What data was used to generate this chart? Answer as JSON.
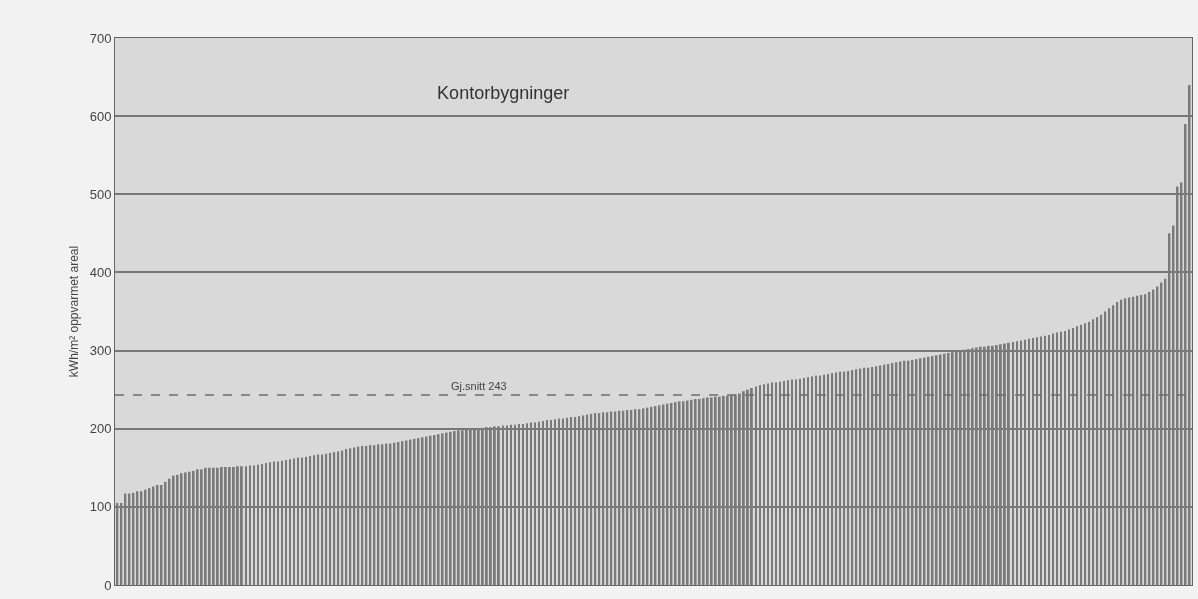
{
  "chart_data": {
    "type": "bar",
    "title": "Kontorbygninger",
    "ylabel": "kWh/m² oppvarmet areal",
    "categories": [
      null,
      null,
      null,
      null,
      null,
      null,
      null,
      null,
      null,
      null,
      null,
      null,
      null,
      null,
      null,
      null,
      null,
      null,
      null,
      null,
      null,
      null,
      null,
      null,
      null,
      null,
      null,
      null,
      null,
      null,
      null,
      null,
      null,
      null,
      null,
      null,
      null,
      null,
      null,
      null,
      null,
      null,
      null,
      null,
      null,
      null,
      null,
      null,
      null,
      null,
      null,
      null,
      null,
      null,
      null,
      null,
      null,
      null,
      null,
      null,
      null,
      null,
      null,
      null,
      null,
      null,
      null,
      null,
      null,
      null,
      null,
      null,
      null,
      null,
      null,
      null,
      null,
      null,
      null,
      null,
      null,
      null,
      null,
      null,
      null,
      null,
      null,
      null,
      null,
      null,
      null,
      null,
      null,
      null,
      null,
      null,
      null,
      null,
      null,
      null,
      null,
      null,
      null,
      null,
      null,
      null,
      null,
      null,
      null,
      null,
      null,
      null,
      null,
      null,
      null,
      null,
      null,
      null,
      null,
      null,
      null,
      null,
      null,
      null,
      null,
      null,
      null,
      null,
      null,
      null,
      null,
      null,
      null,
      null,
      null,
      null,
      null,
      null,
      null,
      null,
      null,
      null,
      null,
      null,
      null,
      null,
      null,
      null,
      null,
      null,
      null,
      null,
      null,
      null,
      null,
      null,
      null,
      null,
      null,
      null,
      null,
      null,
      null,
      null,
      null,
      null,
      null,
      null,
      null,
      null,
      null,
      null,
      null,
      null,
      null,
      null,
      null,
      null,
      null,
      null,
      null,
      null,
      null,
      null,
      null,
      null,
      null,
      null,
      null,
      null,
      null,
      null,
      null,
      null,
      null,
      null,
      null,
      null,
      null,
      null,
      null,
      null,
      null,
      null,
      null,
      null,
      null,
      null,
      null,
      null,
      null,
      null,
      null,
      null,
      null,
      null,
      null,
      null,
      null,
      null,
      null,
      null,
      null,
      null,
      null,
      null,
      null,
      null,
      null,
      null,
      null,
      null,
      null,
      null,
      null,
      null,
      null,
      null,
      null,
      null,
      null,
      null,
      null,
      null,
      null,
      null,
      null,
      null,
      null,
      null,
      null,
      null,
      null,
      null,
      null,
      null,
      null,
      null,
      null,
      null,
      null,
      null,
      null,
      null,
      null,
      null,
      null,
      null
    ],
    "values": [
      105,
      105,
      117,
      117,
      118,
      120,
      120,
      122,
      124,
      126,
      128,
      128,
      132,
      136,
      140,
      141,
      143,
      144,
      145,
      146,
      148,
      148,
      150,
      150,
      150,
      150,
      151,
      151,
      151,
      151,
      152,
      152,
      152,
      153,
      153,
      154,
      155,
      156,
      157,
      158,
      158,
      159,
      160,
      161,
      162,
      163,
      163,
      164,
      165,
      166,
      167,
      167,
      168,
      169,
      170,
      171,
      172,
      174,
      175,
      176,
      177,
      178,
      178,
      179,
      179,
      180,
      180,
      181,
      181,
      182,
      183,
      184,
      185,
      186,
      187,
      188,
      189,
      190,
      191,
      192,
      193,
      194,
      195,
      196,
      197,
      198,
      198,
      199,
      200,
      200,
      201,
      201,
      202,
      202,
      203,
      203,
      204,
      204,
      205,
      205,
      206,
      206,
      207,
      208,
      208,
      209,
      210,
      211,
      211,
      212,
      213,
      213,
      214,
      215,
      215,
      216,
      217,
      218,
      219,
      220,
      220,
      221,
      221,
      222,
      222,
      223,
      223,
      224,
      224,
      225,
      225,
      226,
      227,
      228,
      229,
      230,
      231,
      232,
      233,
      234,
      235,
      235,
      236,
      237,
      238,
      238,
      239,
      240,
      240,
      241,
      241,
      242,
      242,
      243,
      244,
      245,
      248,
      250,
      252,
      254,
      256,
      257,
      258,
      259,
      259,
      260,
      261,
      262,
      263,
      263,
      264,
      265,
      266,
      267,
      268,
      268,
      269,
      270,
      271,
      272,
      273,
      273,
      274,
      275,
      276,
      277,
      278,
      278,
      279,
      280,
      281,
      282,
      283,
      284,
      285,
      286,
      287,
      287,
      288,
      289,
      290,
      291,
      292,
      293,
      294,
      295,
      296,
      297,
      298,
      299,
      300,
      301,
      302,
      303,
      304,
      305,
      305,
      306,
      306,
      307,
      308,
      309,
      310,
      311,
      312,
      313,
      314,
      315,
      316,
      317,
      318,
      319,
      320,
      322,
      323,
      324,
      325,
      327,
      329,
      331,
      333,
      335,
      337,
      340,
      343,
      346,
      350,
      354,
      358,
      362,
      365,
      367,
      368,
      369,
      370,
      371,
      372,
      375,
      378,
      382,
      387,
      392,
      450,
      460,
      510,
      515,
      590,
      640
    ],
    "color": "#7a7a7a",
    "ylim": [
      0,
      700
    ],
    "yticks": [
      0,
      100,
      200,
      300,
      400,
      500,
      600,
      700
    ],
    "grid": "y",
    "tick_labels": "y",
    "ref_lines": [
      {
        "axis": "y",
        "value": 243,
        "label": "Gj.snitt 243",
        "color": "#6e6e6e",
        "line_style": "dashed"
      }
    ]
  }
}
